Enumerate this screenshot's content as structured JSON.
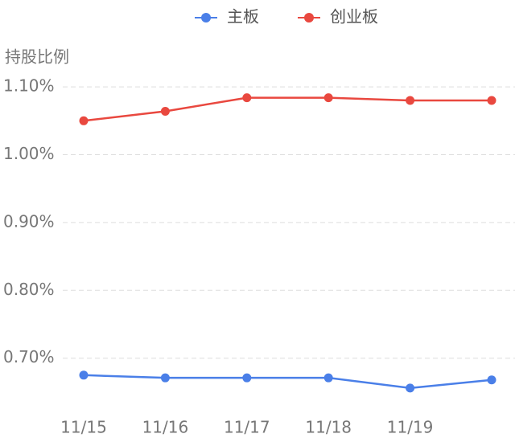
{
  "chart_data": {
    "type": "line",
    "y_label": "持股比例",
    "categories": [
      "11/15",
      "11/16",
      "11/17",
      "11/18",
      "11/19",
      null
    ],
    "series": [
      {
        "name": "主板",
        "color": "#4a7fe8",
        "values": [
          0.675,
          0.671,
          0.671,
          0.671,
          0.656,
          0.668
        ]
      },
      {
        "name": "创业板",
        "color": "#e9483f",
        "values": [
          1.05,
          1.064,
          1.084,
          1.084,
          1.08,
          1.08
        ]
      }
    ],
    "ylim": [
      0.625,
      1.125
    ],
    "yticks": [
      {
        "value": 0.7,
        "label": "0.70%"
      },
      {
        "value": 0.8,
        "label": "0.80%"
      },
      {
        "value": 0.9,
        "label": "0.90%"
      },
      {
        "value": 1.0,
        "label": "1.00%"
      },
      {
        "value": 1.1,
        "label": "1.10%"
      }
    ],
    "grid": true
  }
}
